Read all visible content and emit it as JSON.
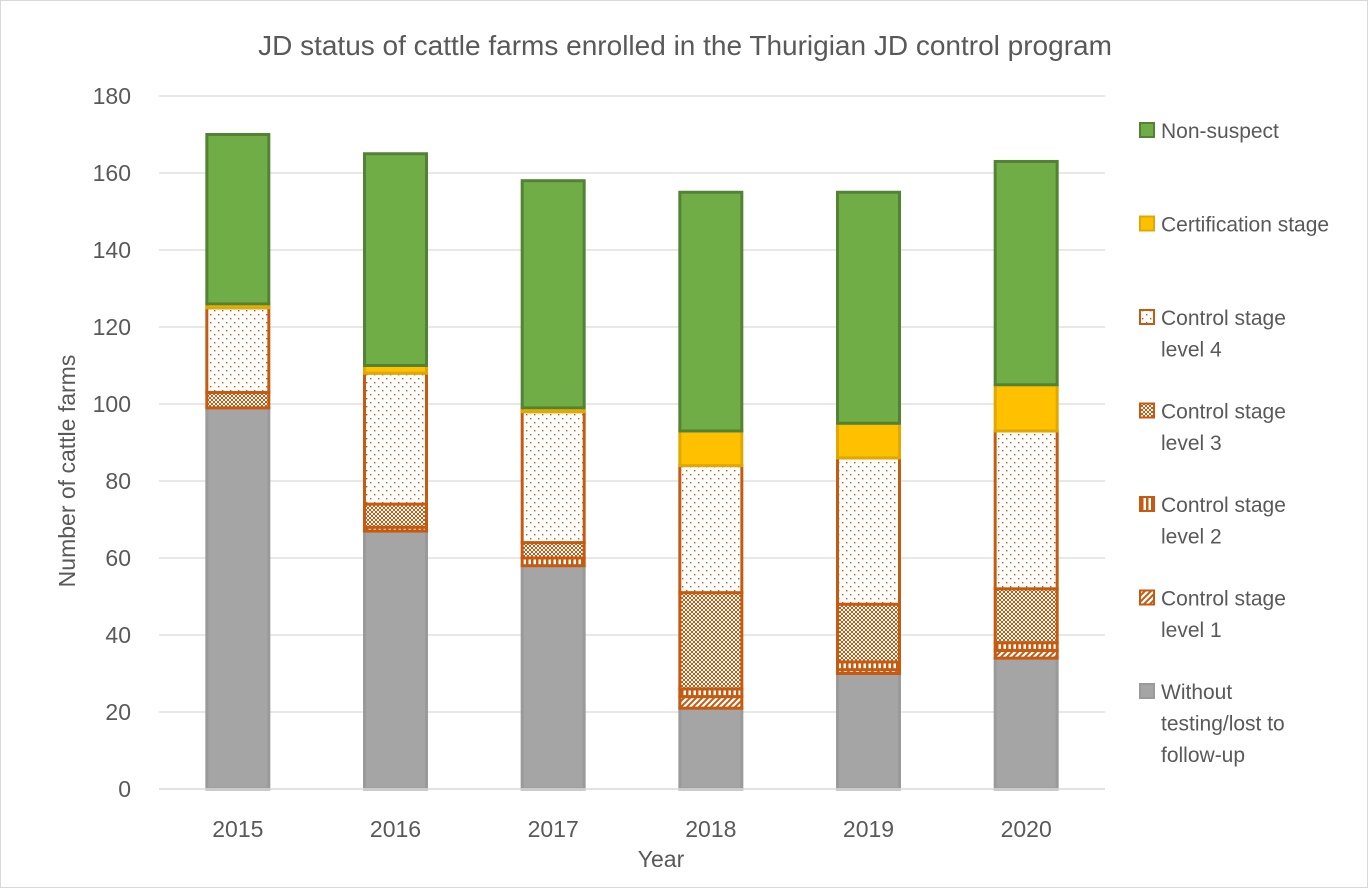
{
  "chart_data": {
    "type": "bar",
    "stacked": true,
    "title": "JD status of cattle farms enrolled in the Thurigian JD control program",
    "xlabel": "Year",
    "ylabel": "Number of cattle farms",
    "ylim": [
      0,
      180
    ],
    "yticks": [
      0,
      20,
      40,
      60,
      80,
      100,
      120,
      140,
      160,
      180
    ],
    "grid": true,
    "legend_position": "right",
    "categories": [
      "2015",
      "2016",
      "2017",
      "2018",
      "2019",
      "2020"
    ],
    "series": [
      {
        "name": "Without testing/lost to follow-up",
        "legend_lines": [
          "Without",
          "testing/lost to",
          "follow-up"
        ],
        "values": [
          99,
          67,
          58,
          21,
          30,
          34
        ],
        "color": "#a5a5a5",
        "border": "#9a9a9a",
        "pattern": "solid"
      },
      {
        "name": "Control stage level 1",
        "legend_lines": [
          "Control stage",
          "level 1"
        ],
        "values": [
          0,
          0,
          0,
          3,
          1,
          2
        ],
        "color": "#c55a11",
        "border": "#c55a11",
        "pattern": "diag"
      },
      {
        "name": "Control stage level 2",
        "legend_lines": [
          "Control stage",
          "level 2"
        ],
        "values": [
          0,
          1,
          2,
          2,
          2,
          2
        ],
        "color": "#c55a11",
        "border": "#c55a11",
        "pattern": "vert"
      },
      {
        "name": "Control stage level 3",
        "legend_lines": [
          "Control stage",
          "level 3"
        ],
        "values": [
          4,
          6,
          4,
          25,
          15,
          14
        ],
        "color": "#c55a11",
        "border": "#c55a11",
        "pattern": "check"
      },
      {
        "name": "Control stage level 4",
        "legend_lines": [
          "Control stage",
          "level 4"
        ],
        "values": [
          22,
          34,
          34,
          33,
          38,
          41
        ],
        "color": "#c55a11",
        "border": "#c55a11",
        "pattern": "dots"
      },
      {
        "name": "Certification stage",
        "legend_lines": [
          "Certification stage"
        ],
        "values": [
          1,
          2,
          1,
          9,
          9,
          12
        ],
        "color": "#ffc000",
        "border": "#e0a800",
        "pattern": "solid"
      },
      {
        "name": "Non-suspect",
        "legend_lines": [
          "Non-suspect"
        ],
        "values": [
          44,
          55,
          59,
          62,
          60,
          58
        ],
        "color": "#70ad47",
        "border": "#548235",
        "pattern": "solid"
      }
    ]
  }
}
